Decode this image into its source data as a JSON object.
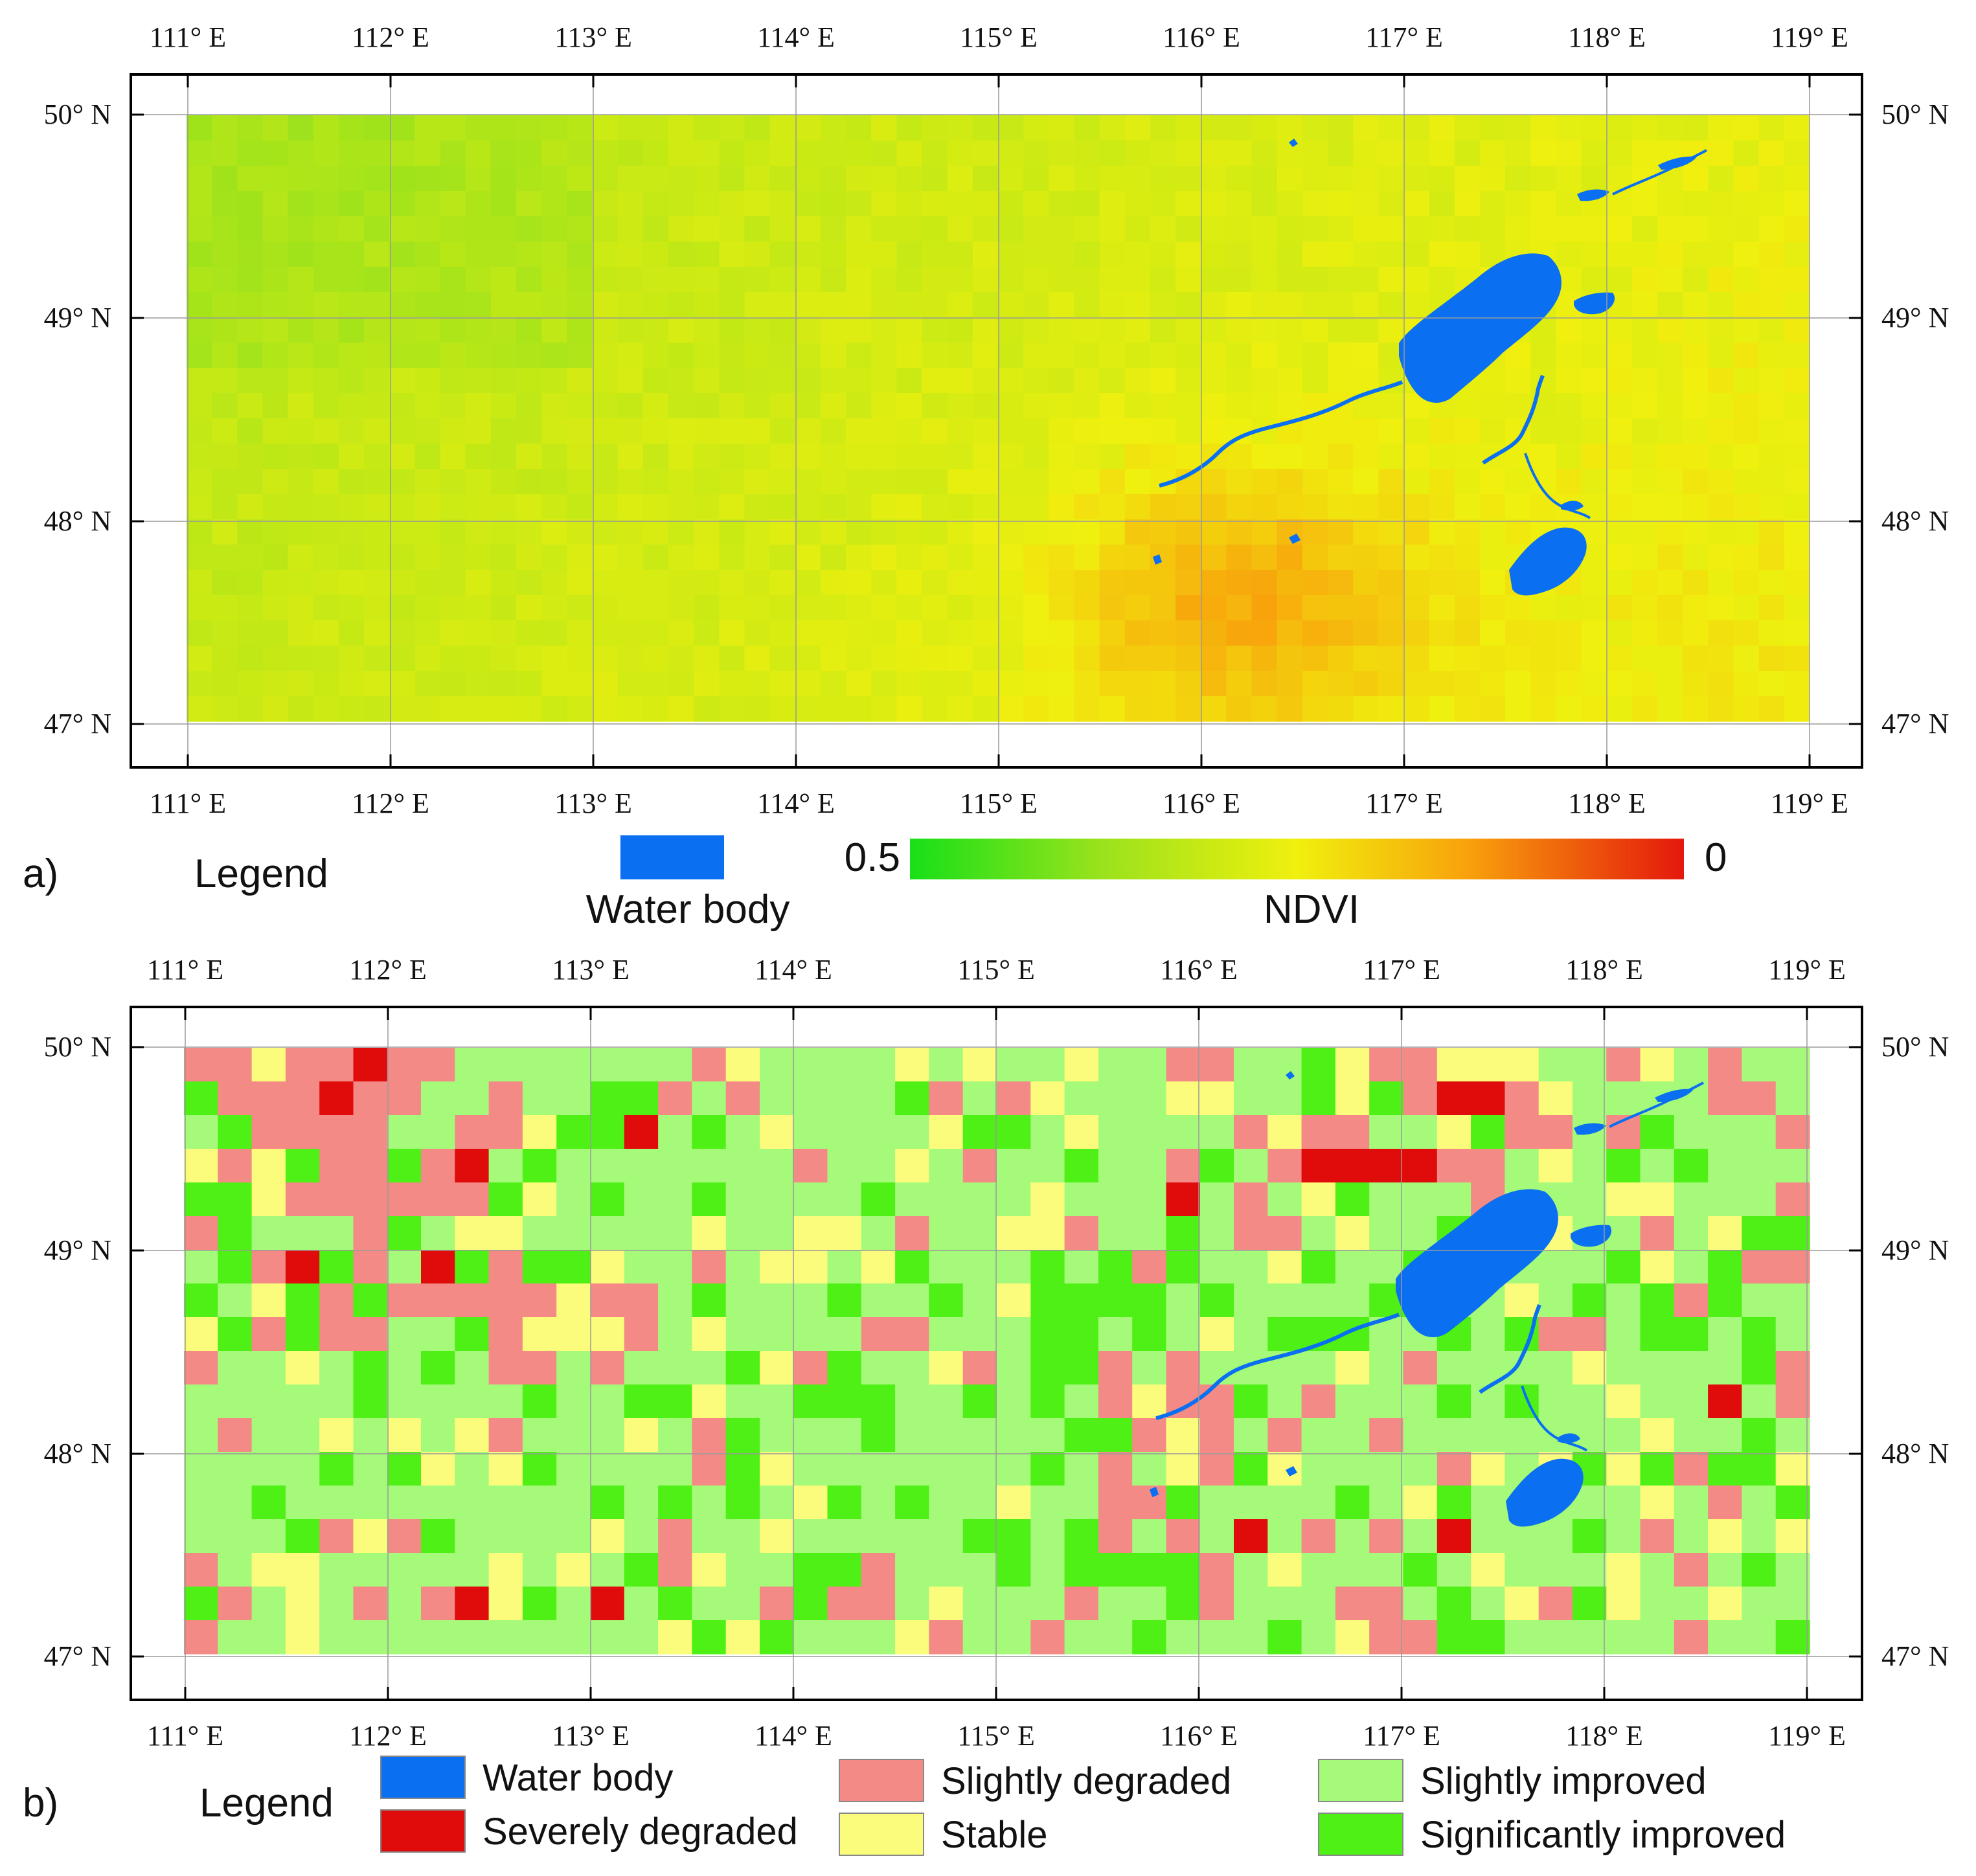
{
  "panel_a": {
    "label": "a)",
    "lon_ticks": [
      "111° E",
      "112° E",
      "113° E",
      "114° E",
      "115° E",
      "116° E",
      "117° E",
      "118° E",
      "119° E"
    ],
    "lat_ticks": [
      "50° N",
      "49° N",
      "48° N",
      "47° N"
    ],
    "legend": {
      "title": "Legend",
      "water_label": "Water body",
      "colorbar_max": "0.5",
      "colorbar_min": "0",
      "colorbar_title": "NDVI"
    }
  },
  "panel_b": {
    "label": "b)",
    "lon_ticks": [
      "111° E",
      "112° E",
      "113° E",
      "114° E",
      "115° E",
      "116° E",
      "117° E",
      "118° E",
      "119° E"
    ],
    "lat_ticks": [
      "50° N",
      "49° N",
      "48° N",
      "47° N"
    ],
    "legend": {
      "title": "Legend",
      "items": [
        {
          "label": "Water body",
          "color": "#0a6ff0"
        },
        {
          "label": "Severely degraded",
          "color": "#e00b0b"
        },
        {
          "label": "Slightly degraded",
          "color": "#f38a85"
        },
        {
          "label": "Stable",
          "color": "#fcfc7c"
        },
        {
          "label": "Slightly improved",
          "color": "#a6fa7a"
        },
        {
          "label": "Significantly improved",
          "color": "#4ef015"
        }
      ]
    }
  },
  "colors": {
    "water": "#0a6ff0",
    "ndvi_high": "#1de61d",
    "ndvi_mid": "#f0f00a",
    "ndvi_low": "#e81a0a"
  }
}
